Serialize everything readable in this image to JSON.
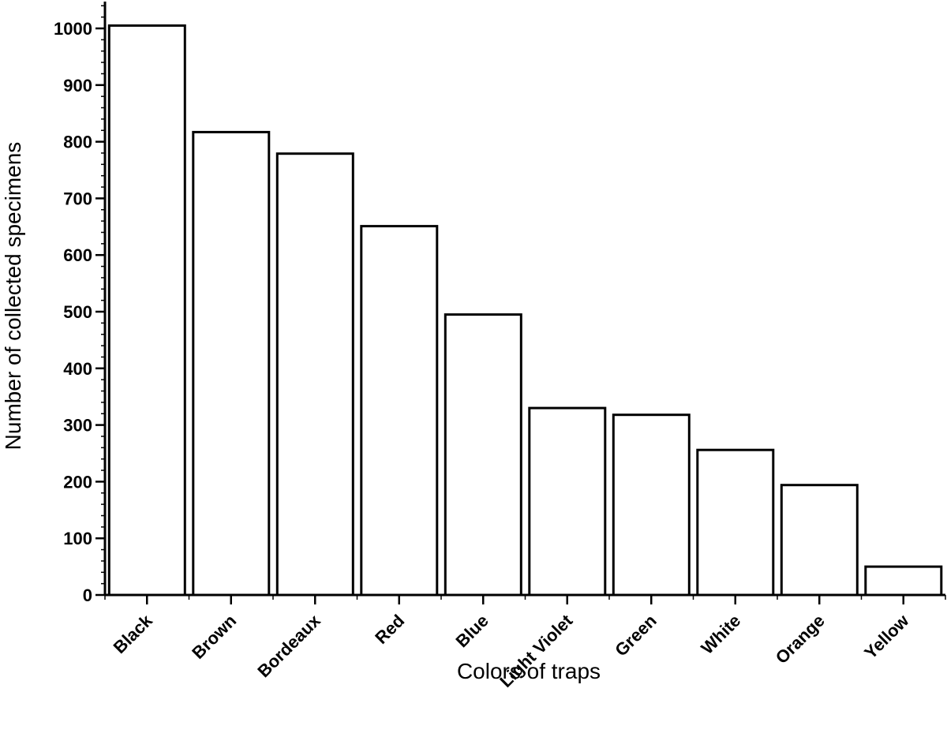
{
  "chart_data": {
    "type": "bar",
    "categories": [
      "Black",
      "Brown",
      "Bordeaux",
      "Red",
      "Blue",
      "Light Violet",
      "Green",
      "White",
      "Orange",
      "Yellow"
    ],
    "values": [
      1005,
      817,
      779,
      651,
      495,
      330,
      318,
      256,
      194,
      50
    ],
    "title": "",
    "xlabel": "Colors of traps",
    "ylabel": "Number of collected specimens",
    "ylim": [
      0,
      1050
    ],
    "yticks": [
      0,
      100,
      200,
      300,
      400,
      500,
      600,
      700,
      800,
      900,
      1000
    ],
    "ytick_labels": [
      "0",
      "100",
      "200",
      "300",
      "400",
      "500",
      "600",
      "700",
      "800",
      "900",
      "1000"
    ],
    "minor_tick_step": 20,
    "grid": false,
    "bar_fill": "#ffffff",
    "bar_stroke": "#000000"
  }
}
